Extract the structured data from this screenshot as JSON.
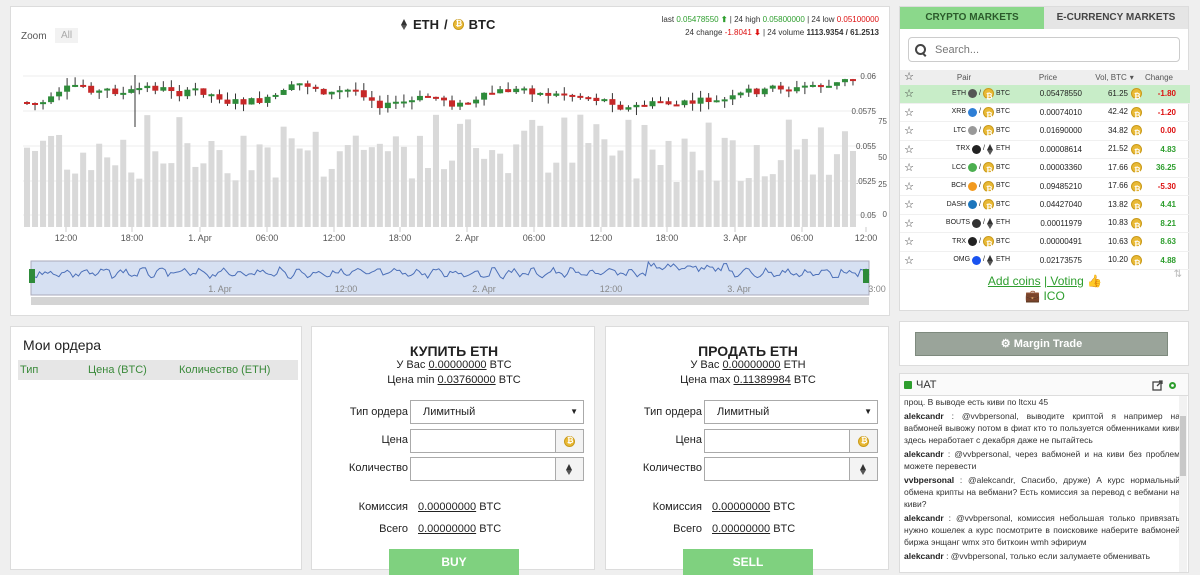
{
  "chart": {
    "zoom_label": "Zoom",
    "zoom_all": "All",
    "base": "ETH",
    "separator": "/",
    "quote": "BTC",
    "stats_line1": {
      "last_label": "last",
      "last": "0.05478550",
      "high_label": "| 24 high",
      "high": "0.05800000",
      "low_label": "| 24 low",
      "low": "0.05100000"
    },
    "stats_line2": {
      "change_label": "24 change",
      "change": "-1.8041",
      "volume_label": "| 24 volume",
      "volume": "1113.9354",
      "volume2": "/ 61.2513"
    },
    "price_axis": [
      "0.06",
      "0.0575",
      "0.055",
      "0.0525",
      "0.05"
    ],
    "volume_axis": [
      "75",
      "50",
      "25",
      "0"
    ],
    "time_axis": [
      "12:00",
      "18:00",
      "1. Apr",
      "06:00",
      "12:00",
      "18:00",
      "2. Apr",
      "06:00",
      "12:00",
      "18:00",
      "3. Apr",
      "06:00",
      "12:00"
    ],
    "navigator_axis": [
      "1. Apr",
      "12:00",
      "2. Apr",
      "12:00",
      "3. Apr",
      "3:00"
    ]
  },
  "markets": {
    "tab_crypto": "CRYPTO MARKETS",
    "tab_ecurrency": "E-CURRENCY MARKETS",
    "search_placeholder": "Search...",
    "headers": {
      "pair": "Pair",
      "price": "Price",
      "vol": "Vol, BTC",
      "change": "Change"
    },
    "rows": [
      {
        "base": "ETH",
        "quote": "BTC",
        "price": "0.05478550",
        "vol": "61.25",
        "change": "-1.80",
        "sign": "neg",
        "selected": true
      },
      {
        "base": "XRB",
        "quote": "BTC",
        "price": "0.00074010",
        "vol": "42.42",
        "change": "-1.20",
        "sign": "neg"
      },
      {
        "base": "LTC",
        "quote": "BTC",
        "price": "0.01690000",
        "vol": "34.82",
        "change": "0.00",
        "sign": "neu"
      },
      {
        "base": "TRX",
        "quote": "ETH",
        "price": "0.00008614",
        "vol": "21.52",
        "change": "4.83",
        "sign": "pos"
      },
      {
        "base": "LCC",
        "quote": "BTC",
        "price": "0.00003360",
        "vol": "17.66",
        "change": "36.25",
        "sign": "pos"
      },
      {
        "base": "BCH",
        "quote": "BTC",
        "price": "0.09485210",
        "vol": "17.66",
        "change": "-5.30",
        "sign": "neg"
      },
      {
        "base": "DASH",
        "quote": "BTC",
        "price": "0.04427040",
        "vol": "13.82",
        "change": "4.41",
        "sign": "pos"
      },
      {
        "base": "BOUTS",
        "quote": "ETH",
        "price": "0.00011979",
        "vol": "10.83",
        "change": "8.21",
        "sign": "pos"
      },
      {
        "base": "TRX",
        "quote": "BTC",
        "price": "0.00000491",
        "vol": "10.63",
        "change": "8.63",
        "sign": "pos"
      },
      {
        "base": "OMG",
        "quote": "ETH",
        "price": "0.02173575",
        "vol": "10.20",
        "change": "4.88",
        "sign": "pos"
      }
    ],
    "add_coins": "Add coins",
    "voting": "| Voting",
    "ico": "ICO"
  },
  "margin_trade": "Margin Trade",
  "chat": {
    "title": "ЧАТ",
    "messages": [
      {
        "nick": "",
        "text": "проц. В выводе есть киви по ltcxu 45"
      },
      {
        "nick": "alekcandr",
        "text": ": @vvbpersonal, выводите криптой я например на вабмоней вывожу потом в фиат кто то пользуется обменниками киви здесь неработает с декабря даже не пытайтесь"
      },
      {
        "nick": "alekcandr",
        "text": ": @vvbpersonal, через вабмоней и на киви без проблем можете перевести"
      },
      {
        "nick": "vvbpersonal",
        "text": ": @alekcandr, Спасибо, друже) А курс нормальный обмена крипты на вебмани? Есть комиссия за перевод с вебмани на киви?"
      },
      {
        "nick": "alekcandr",
        "text": ": @vvbpersonal, комиссия небольшая только привязать нужно кошелек а курс посмотрите в поисковике наберите вабмоней биржа энщанг wmx это биткоин wmh эфириум"
      },
      {
        "nick": "alekcandr",
        "text": ": @vvbpersonal, только если залумаете обменивать"
      }
    ]
  },
  "orders": {
    "title": "Мои ордера",
    "col_type": "Тип",
    "col_price": "Цена (BTC)",
    "col_qty": "Количество (ETH)"
  },
  "buy": {
    "title": "КУПИТЬ ETH",
    "have_label": "У Вас",
    "have_value": "0.00000000",
    "have_unit": "BTC",
    "price_label": "Цена min",
    "price_value": "0.03760000",
    "price_unit": "BTC",
    "order_type_label": "Тип ордера",
    "order_type": "Лимитный",
    "price_field_label": "Цена",
    "qty_label": "Количество",
    "fee_label": "Комиссия",
    "fee_value": "0.00000000",
    "fee_unit": "BTC",
    "total_label": "Всего",
    "total_value": "0.00000000",
    "total_unit": "BTC",
    "button": "BUY"
  },
  "sell": {
    "title": "ПРОДАТЬ ETH",
    "have_label": "У Вас",
    "have_value": "0.00000000",
    "have_unit": "ETH",
    "price_label": "Цена max",
    "price_value": "0.11389984",
    "price_unit": "BTC",
    "order_type_label": "Тип ордера",
    "order_type": "Лимитный",
    "price_field_label": "Цена",
    "qty_label": "Количество",
    "fee_label": "Комиссия",
    "fee_value": "0.00000000",
    "fee_unit": "BTC",
    "total_label": "Всего",
    "total_value": "0.00000000",
    "total_unit": "BTC",
    "button": "SELL"
  },
  "colors": {
    "accent": "#7fd17f",
    "up": "#2e9e2e",
    "down": "#c62828",
    "selected_row": "#c8edc8"
  }
}
